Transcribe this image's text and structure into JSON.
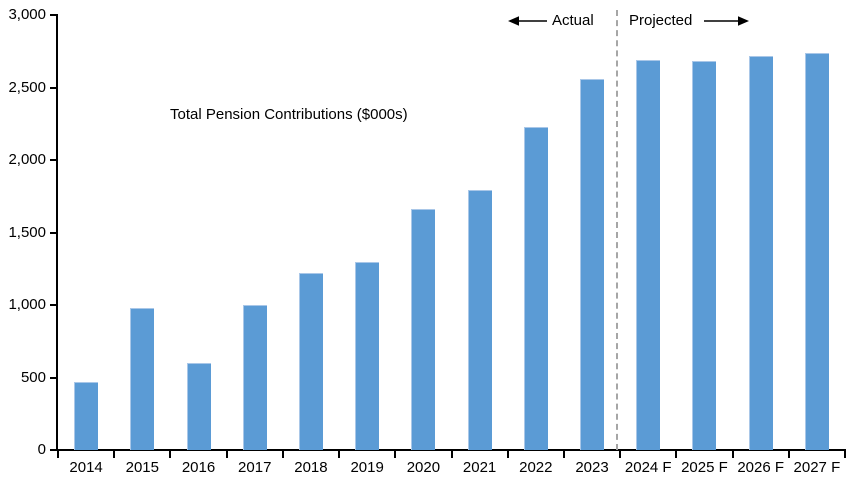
{
  "chart_data": {
    "type": "bar",
    "title": "",
    "categories": [
      "2014",
      "2015",
      "2016",
      "2017",
      "2018",
      "2019",
      "2020",
      "2021",
      "2022",
      "2023",
      "2024 F",
      "2025 F",
      "2026 F",
      "2027 F"
    ],
    "series": [
      {
        "name": "Total Pension Contributions ($000s)",
        "values": [
          470,
          980,
          600,
          1000,
          1220,
          1300,
          1660,
          1790,
          2230,
          2560,
          2690,
          2685,
          2715,
          2735
        ]
      }
    ],
    "xlabel": "",
    "ylabel": "",
    "ylim": [
      0,
      3000
    ],
    "y_tick_step": 500,
    "y_tick_labels": [
      "0",
      "500",
      "1,000",
      "1,500",
      "2,000",
      "2,500",
      "3,000"
    ],
    "grid": false,
    "legend_position": "inside-upper-left",
    "bar_color": "#5B9BD5",
    "axis_color": "#000000",
    "annotations": {
      "actual_label": "Actual",
      "projected_label": "Projected",
      "divider_after_category": "2023",
      "divider_style": "dashed",
      "divider_color": "#A6A6A6"
    }
  }
}
